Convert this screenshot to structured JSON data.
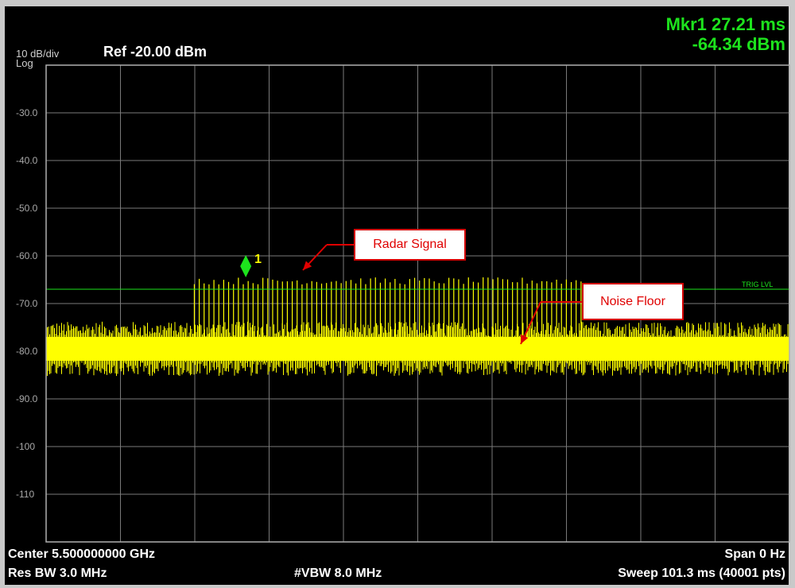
{
  "header": {
    "scale_label": "10 dB/div",
    "scale_type": "Log",
    "ref_level": "Ref -20.00 dBm",
    "marker_time": "Mkr1 27.21 ms",
    "marker_level": "-64.34 dBm"
  },
  "footer": {
    "center": "Center 5.500000000 GHz",
    "res_bw": "Res BW 3.0 MHz",
    "vbw": "#VBW 8.0 MHz",
    "span": "Span 0 Hz",
    "sweep": "Sweep  101.3 ms (40001 pts)"
  },
  "annotations": {
    "radar_signal": "Radar Signal",
    "noise_floor": "Noise Floor",
    "trigger_label": "TRIG LVL",
    "marker_number": "1"
  },
  "colors": {
    "trace": "#ffff00",
    "marker": "#1de31d",
    "trigger_line": "#1de31d",
    "grid": "#7a7a7a",
    "callout_border": "#d40000",
    "callout_text": "#e00000"
  },
  "chart_data": {
    "type": "line",
    "xlabel": "",
    "ylabel": "",
    "x_unit": "ms",
    "y_unit": "dBm",
    "xlim": [
      0,
      101.3
    ],
    "ylim": [
      -120,
      -20
    ],
    "y_ticks": [
      "-30.0",
      "-40.0",
      "-50.0",
      "-60.0",
      "-70.0",
      "-80.0",
      "-90.0",
      "-100",
      "-110"
    ],
    "y_tick_values": [
      -30,
      -40,
      -50,
      -60,
      -70,
      -80,
      -90,
      -100,
      -110
    ],
    "grid": true,
    "trigger_level_dbm": -67,
    "noise_floor_center_dbm": -80,
    "noise_floor_band_dbm": [
      -83,
      -76
    ],
    "radar_pulses": {
      "start_ms": 20.2,
      "end_ms": 72.9,
      "count": 80,
      "peak_dbm_range": [
        -66,
        -64.5
      ]
    },
    "marker": {
      "label": "1",
      "x_ms": 27.21,
      "y_dbm": -64.34
    }
  }
}
